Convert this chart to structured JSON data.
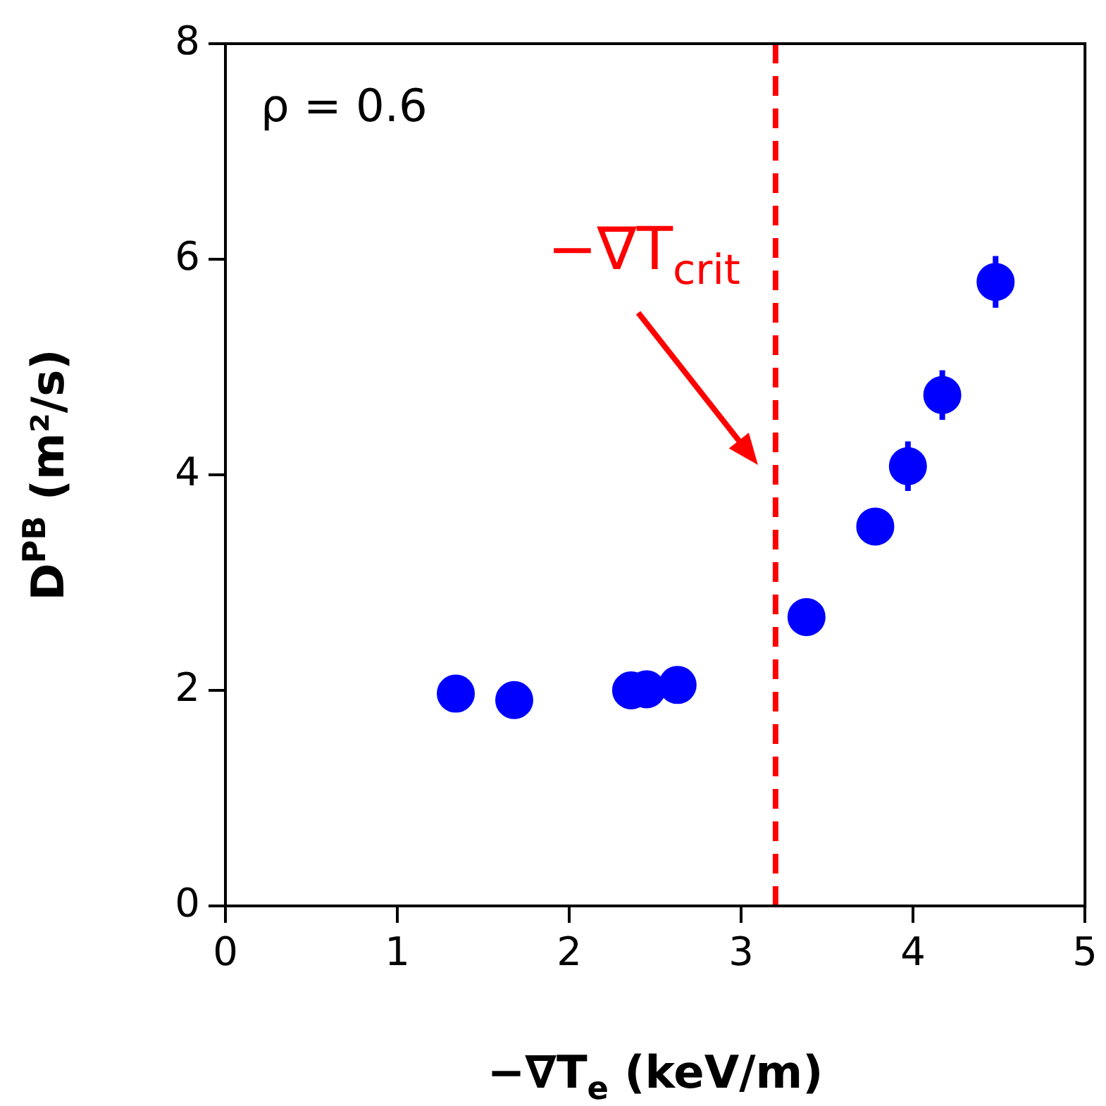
{
  "chart_data": {
    "type": "scatter",
    "xlabel": "−∇T$_{e}$ (keV/m)",
    "ylabel": "D$^{PB}$ (m²/s)",
    "x": [
      1.34,
      1.68,
      2.36,
      2.45,
      2.63,
      3.38,
      3.78,
      3.97,
      4.17,
      4.48
    ],
    "values": [
      1.97,
      1.91,
      2.0,
      2.01,
      2.05,
      2.68,
      3.52,
      4.08,
      4.74,
      5.79
    ],
    "errors": [
      null,
      null,
      null,
      null,
      null,
      null,
      null,
      0.23,
      0.23,
      0.24
    ],
    "color": "#0000ff",
    "marker": "circle",
    "xlim": [
      0,
      5
    ],
    "xticks": [
      0,
      1,
      2,
      3,
      4,
      5
    ],
    "ylim": [
      0,
      8
    ],
    "yticks": [
      0,
      2,
      4,
      6,
      8
    ],
    "grid": false,
    "legend": false,
    "ref_lines": [
      {
        "axis": "x",
        "value": 3.2,
        "label": "−∇T$_{crit}$",
        "color": "#ff0000",
        "line_style": "dashed"
      }
    ],
    "annotations": [
      "ρ = 0.6"
    ]
  }
}
